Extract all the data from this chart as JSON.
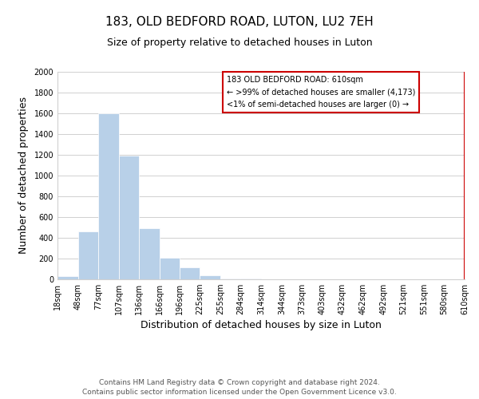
{
  "title": "183, OLD BEDFORD ROAD, LUTON, LU2 7EH",
  "subtitle": "Size of property relative to detached houses in Luton",
  "xlabel": "Distribution of detached houses by size in Luton",
  "ylabel": "Number of detached properties",
  "bar_color": "#b8d0e8",
  "grid_color": "#d0d0d0",
  "ylim": [
    0,
    2000
  ],
  "yticks": [
    0,
    200,
    400,
    600,
    800,
    1000,
    1200,
    1400,
    1600,
    1800,
    2000
  ],
  "bin_edges": [
    18,
    48,
    77,
    107,
    136,
    166,
    196,
    225,
    255,
    284,
    314,
    344,
    373,
    403,
    432,
    462,
    492,
    521,
    551,
    580,
    610
  ],
  "bar_heights": [
    30,
    460,
    1600,
    1190,
    490,
    210,
    115,
    40,
    10,
    5,
    2,
    0,
    0,
    0,
    0,
    0,
    0,
    0,
    0,
    0
  ],
  "annotation_title": "183 OLD BEDFORD ROAD: 610sqm",
  "annotation_line1": "← >99% of detached houses are smaller (4,173)",
  "annotation_line2": "<1% of semi-detached houses are larger (0) →",
  "annotation_box_color": "#cc0000",
  "property_line_color": "#cc0000",
  "property_line_x": 610,
  "footer1": "Contains HM Land Registry data © Crown copyright and database right 2024.",
  "footer2": "Contains public sector information licensed under the Open Government Licence v3.0.",
  "title_fontsize": 11,
  "subtitle_fontsize": 9,
  "tick_label_fontsize": 7,
  "axis_label_fontsize": 9,
  "footer_fontsize": 6.5
}
